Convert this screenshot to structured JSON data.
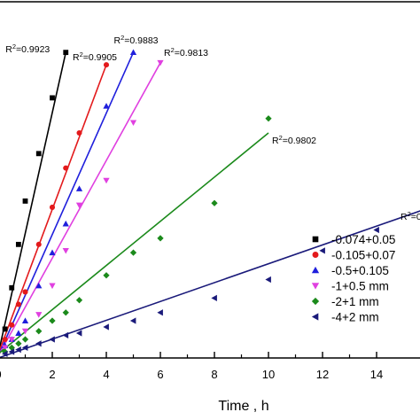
{
  "chart_data": {
    "type": "scatter",
    "xlabel": "Time , h",
    "ylabel": "",
    "xlim": [
      0,
      16
    ],
    "ylim": [
      0,
      15
    ],
    "x_ticks": [
      0,
      2,
      4,
      6,
      8,
      10,
      12,
      14
    ],
    "x_tick_labels": [
      "0",
      "2",
      "4",
      "6",
      "8",
      "10",
      "12",
      "14"
    ],
    "legend_placement": "bottom-right",
    "grid": false,
    "series": [
      {
        "name": "-0.074+0.05",
        "marker": "square",
        "color": "#000000",
        "x": [
          0.25,
          0.5,
          0.75,
          1,
          1.5,
          2,
          2.5
        ],
        "y": [
          1.4,
          3.4,
          5.5,
          7.6,
          9.9,
          12.6,
          14.8
        ],
        "fit": {
          "x": [
            0,
            2.5
          ],
          "y": [
            0.2,
            14.8
          ],
          "r2_label": "R2=0.9923"
        }
      },
      {
        "name": "-0.105+0.07",
        "marker": "circle",
        "color": "#e31a1c",
        "x": [
          0.25,
          0.5,
          0.75,
          1,
          1.5,
          2,
          2.5,
          3,
          4
        ],
        "y": [
          0.9,
          1.6,
          2.6,
          3.2,
          5.5,
          7.3,
          9.2,
          10.9,
          14.2
        ],
        "fit": {
          "x": [
            0,
            4
          ],
          "y": [
            0.2,
            14.2
          ],
          "r2_label": "R2=0.9905"
        }
      },
      {
        "name": "-0.5+0.105",
        "marker": "triangle-up",
        "color": "#1f1fdc",
        "x": [
          0.25,
          0.5,
          0.75,
          1,
          1.5,
          2,
          2.5,
          3,
          4,
          5
        ],
        "y": [
          0.6,
          0.9,
          1.2,
          1.8,
          3.5,
          5.1,
          6.5,
          8.2,
          12.2,
          14.8
        ],
        "fit": {
          "x": [
            0,
            5
          ],
          "y": [
            0.1,
            14.8
          ],
          "r2_label": "R2=0.9883"
        }
      },
      {
        "name": "-1+0.5 mm",
        "marker": "triangle-down",
        "color": "#e040e0",
        "x": [
          0.25,
          0.5,
          1,
          1.5,
          2,
          2.5,
          3,
          4,
          5,
          6
        ],
        "y": [
          0.5,
          0.9,
          1.3,
          2.1,
          3.5,
          5.2,
          7.4,
          8.6,
          11.4,
          14.3
        ],
        "fit": {
          "x": [
            0,
            6
          ],
          "y": [
            0.1,
            14.3
          ],
          "r2_label": "R2=0.9813"
        }
      },
      {
        "name": "-2+1 mm",
        "marker": "diamond",
        "color": "#1b8a1b",
        "x": [
          0.25,
          0.5,
          0.75,
          1,
          1.5,
          2,
          2.5,
          3,
          4,
          5,
          6,
          8,
          10
        ],
        "y": [
          0.3,
          0.5,
          0.7,
          0.9,
          1.3,
          1.8,
          2.2,
          2.8,
          4.0,
          5.1,
          5.8,
          7.5,
          11.6
        ],
        "fit": {
          "x": [
            0,
            10
          ],
          "y": [
            0.2,
            10.9
          ],
          "r2_label": "R2=0.9802"
        }
      },
      {
        "name": "-4+2 mm",
        "marker": "triangle-left",
        "color": "#1a1a7a",
        "x": [
          0.25,
          0.5,
          0.75,
          1,
          1.5,
          2,
          2.5,
          3,
          4,
          5,
          6,
          8,
          10,
          12,
          14
        ],
        "y": [
          0.2,
          0.3,
          0.4,
          0.5,
          0.7,
          0.9,
          1.1,
          1.2,
          1.5,
          1.8,
          2.2,
          2.9,
          3.8,
          5.2,
          6.2
        ],
        "fit": {
          "x": [
            0,
            16
          ],
          "y": [
            0,
            7.3
          ],
          "r2_label": "R2=0"
        }
      }
    ]
  }
}
